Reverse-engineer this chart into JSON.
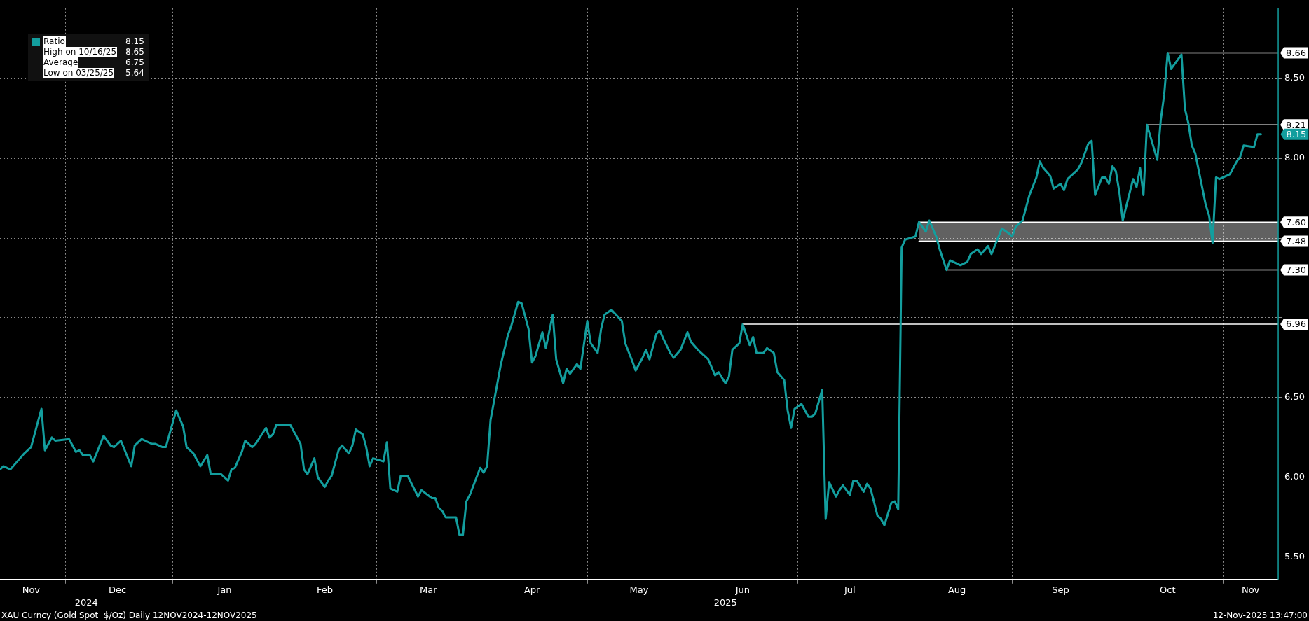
{
  "chart_data": {
    "type": "line",
    "annotations": [
      "High on 10/16/25 8.65",
      "Average 6.75",
      "Low on 03/25/25 5.64",
      "XAU Curncy (Gold Spot  $/Oz) Daily 12NOV2024-12NOV2025",
      "12-Nov-2025 13:47:00",
      {
        "text": "8.15",
        "x": "2025-11-12",
        "y": 8.15
      }
    ],
    "x2lim": [
      "2024-11-12",
      "2025-11-17"
    ],
    "x2ticks": [
      {
        "value": "2024-12-07",
        "label": "2024"
      },
      {
        "value": "2025-06-10",
        "label": "2025"
      }
    ],
    "xlim": [
      "2024-11-12",
      "2025-11-17"
    ],
    "xticks": [
      {
        "value": "2024-11-21",
        "label": "Nov"
      },
      {
        "value": "2024-12-01",
        "label": null
      },
      {
        "value": "2024-12-16",
        "label": "Dec"
      },
      {
        "value": "2025-01-01",
        "label": null
      },
      {
        "value": "2025-01-16",
        "label": "Jan"
      },
      {
        "value": "2025-02-01",
        "label": null
      },
      {
        "value": "2025-02-14",
        "label": "Feb"
      },
      {
        "value": "2025-03-01",
        "label": null
      },
      {
        "value": "2025-03-16",
        "label": "Mar"
      },
      {
        "value": "2025-04-01",
        "label": null
      },
      {
        "value": "2025-04-15",
        "label": "Apr"
      },
      {
        "value": "2025-05-01",
        "label": null
      },
      {
        "value": "2025-05-16",
        "label": "May"
      },
      {
        "value": "2025-06-01",
        "label": null
      },
      {
        "value": "2025-06-15",
        "label": "Jun"
      },
      {
        "value": "2025-07-01",
        "label": null
      },
      {
        "value": "2025-07-16",
        "label": "Jul"
      },
      {
        "value": "2025-08-01",
        "label": null
      },
      {
        "value": "2025-08-16",
        "label": "Aug"
      },
      {
        "value": "2025-09-01",
        "label": null
      },
      {
        "value": "2025-09-15",
        "label": "Sep"
      },
      {
        "value": "2025-10-01",
        "label": null
      },
      {
        "value": "2025-10-16",
        "label": "Oct"
      },
      {
        "value": "2025-11-01",
        "label": null
      },
      {
        "value": "2025-11-09",
        "label": "Nov"
      }
    ],
    "ylim": [
      5.36,
      8.94
    ],
    "yticks": [
      {
        "value": 5.5,
        "label": "5.50"
      },
      {
        "value": 6,
        "label": "6.00"
      },
      {
        "value": 6.5,
        "label": "6.50"
      },
      {
        "value": 7,
        "label": null
      },
      {
        "value": 7.5,
        "label": null
      },
      {
        "value": 8,
        "label": "8.00"
      },
      {
        "value": 8.5,
        "label": "8.50"
      }
    ],
    "grid": true,
    "legend": "top left",
    "series": [
      {
        "name": "Ratio",
        "color": "#139e9e",
        "x": [
          "2024-11-12",
          "2024-11-13",
          "2024-11-15",
          "2024-11-17",
          "2024-11-19",
          "2024-11-21",
          "2024-11-22",
          "2024-11-24",
          "2024-11-25",
          "2024-11-27",
          "2024-11-28",
          "2024-12-02",
          "2024-12-04",
          "2024-12-05",
          "2024-12-06",
          "2024-12-08",
          "2024-12-09",
          "2024-12-12",
          "2024-12-14",
          "2024-12-15",
          "2024-12-17",
          "2024-12-20",
          "2024-12-21",
          "2024-12-23",
          "2024-12-24",
          "2024-12-26",
          "2024-12-27",
          "2024-12-29",
          "2024-12-30",
          "2025-01-02",
          "2025-01-04",
          "2025-01-05",
          "2025-01-07",
          "2025-01-09",
          "2025-01-11",
          "2025-01-12",
          "2025-01-15",
          "2025-01-17",
          "2025-01-18",
          "2025-01-19",
          "2025-01-21",
          "2025-01-22",
          "2025-01-24",
          "2025-01-25",
          "2025-01-28",
          "2025-01-29",
          "2025-01-30",
          "2025-01-31",
          "2025-02-04",
          "2025-02-07",
          "2025-02-08",
          "2025-02-09",
          "2025-02-11",
          "2025-02-12",
          "2025-02-14",
          "2025-02-15",
          "2025-02-16",
          "2025-02-18",
          "2025-02-19",
          "2025-02-21",
          "2025-02-22",
          "2025-02-23",
          "2025-02-25",
          "2025-02-26",
          "2025-02-27",
          "2025-02-28",
          "2025-03-03",
          "2025-03-04",
          "2025-03-05",
          "2025-03-07",
          "2025-03-08",
          "2025-03-10",
          "2025-03-13",
          "2025-03-14",
          "2025-03-17",
          "2025-03-18",
          "2025-03-19",
          "2025-03-20",
          "2025-03-21",
          "2025-03-24",
          "2025-03-25",
          "2025-03-26",
          "2025-03-27",
          "2025-03-28",
          "2025-03-31",
          "2025-04-01",
          "2025-04-02",
          "2025-04-03",
          "2025-04-06",
          "2025-04-08",
          "2025-04-09",
          "2025-04-11",
          "2025-04-12",
          "2025-04-14",
          "2025-04-15",
          "2025-04-16",
          "2025-04-18",
          "2025-04-19",
          "2025-04-21",
          "2025-04-22",
          "2025-04-24",
          "2025-04-25",
          "2025-04-26",
          "2025-04-28",
          "2025-04-29",
          "2025-05-01",
          "2025-05-02",
          "2025-05-04",
          "2025-05-05",
          "2025-05-06",
          "2025-05-08",
          "2025-05-11",
          "2025-05-12",
          "2025-05-14",
          "2025-05-15",
          "2025-05-17",
          "2025-05-18",
          "2025-05-19",
          "2025-05-21",
          "2025-05-22",
          "2025-05-23",
          "2025-05-25",
          "2025-05-26",
          "2025-05-28",
          "2025-05-30",
          "2025-05-31",
          "2025-06-02",
          "2025-06-05",
          "2025-06-07",
          "2025-06-08",
          "2025-06-10",
          "2025-06-11",
          "2025-06-12",
          "2025-06-14",
          "2025-06-15",
          "2025-06-17",
          "2025-06-18",
          "2025-06-19",
          "2025-06-21",
          "2025-06-22",
          "2025-06-24",
          "2025-06-25",
          "2025-06-27",
          "2025-06-28",
          "2025-06-29",
          "2025-06-30",
          "2025-07-02",
          "2025-07-04",
          "2025-07-05",
          "2025-07-06",
          "2025-07-08",
          "2025-07-09",
          "2025-07-10",
          "2025-07-12",
          "2025-07-13",
          "2025-07-14",
          "2025-07-16",
          "2025-07-17",
          "2025-07-18",
          "2025-07-20",
          "2025-07-21",
          "2025-07-22",
          "2025-07-24",
          "2025-07-25",
          "2025-07-26",
          "2025-07-28",
          "2025-07-29",
          "2025-07-30",
          "2025-07-31",
          "2025-08-01",
          "2025-08-04",
          "2025-08-05",
          "2025-08-07",
          "2025-08-08",
          "2025-08-10",
          "2025-08-11",
          "2025-08-13",
          "2025-08-14",
          "2025-08-17",
          "2025-08-19",
          "2025-08-20",
          "2025-08-22",
          "2025-08-23",
          "2025-08-25",
          "2025-08-26",
          "2025-08-29",
          "2025-08-31",
          "2025-09-01",
          "2025-09-02",
          "2025-09-04",
          "2025-09-05",
          "2025-09-06",
          "2025-09-08",
          "2025-09-09",
          "2025-09-10",
          "2025-09-12",
          "2025-09-13",
          "2025-09-15",
          "2025-09-16",
          "2025-09-17",
          "2025-09-19",
          "2025-09-20",
          "2025-09-21",
          "2025-09-23",
          "2025-09-24",
          "2025-09-25",
          "2025-09-27",
          "2025-09-28",
          "2025-09-29",
          "2025-09-30",
          "2025-10-01",
          "2025-10-02",
          "2025-10-03",
          "2025-10-06",
          "2025-10-07",
          "2025-10-08",
          "2025-10-09",
          "2025-10-10",
          "2025-10-13",
          "2025-10-14",
          "2025-10-15",
          "2025-10-16",
          "2025-10-17",
          "2025-10-20",
          "2025-10-21",
          "2025-10-22",
          "2025-10-23",
          "2025-10-24",
          "2025-10-27",
          "2025-10-28",
          "2025-10-29",
          "2025-10-30",
          "2025-10-31",
          "2025-11-03",
          "2025-11-04",
          "2025-11-05",
          "2025-11-06",
          "2025-11-07",
          "2025-11-10",
          "2025-11-11",
          "2025-11-12"
        ],
        "values": [
          6.05,
          6.07,
          6.05,
          6.1,
          6.15,
          6.19,
          6.27,
          6.43,
          6.17,
          6.25,
          6.23,
          6.24,
          6.16,
          6.17,
          6.14,
          6.14,
          6.1,
          6.26,
          6.2,
          6.19,
          6.23,
          6.07,
          6.2,
          6.24,
          6.23,
          6.21,
          6.21,
          6.19,
          6.19,
          6.42,
          6.32,
          6.19,
          6.15,
          6.07,
          6.14,
          6.02,
          6.02,
          5.98,
          6.05,
          6.06,
          6.16,
          6.23,
          6.19,
          6.21,
          6.31,
          6.25,
          6.27,
          6.33,
          6.33,
          6.21,
          6.05,
          6.02,
          6.12,
          6.0,
          5.94,
          5.98,
          6.01,
          6.17,
          6.2,
          6.15,
          6.2,
          6.3,
          6.27,
          6.19,
          6.07,
          6.12,
          6.1,
          6.22,
          5.93,
          5.91,
          6.01,
          6.01,
          5.88,
          5.92,
          5.87,
          5.87,
          5.81,
          5.79,
          5.75,
          5.75,
          5.64,
          5.64,
          5.85,
          5.89,
          6.06,
          6.03,
          6.07,
          6.36,
          6.71,
          6.89,
          6.95,
          7.1,
          7.09,
          6.93,
          6.72,
          6.76,
          6.91,
          6.81,
          7.02,
          6.74,
          6.59,
          6.68,
          6.65,
          6.71,
          6.68,
          6.98,
          6.84,
          6.78,
          6.93,
          7.02,
          7.05,
          6.98,
          6.84,
          6.73,
          6.67,
          6.75,
          6.8,
          6.74,
          6.9,
          6.92,
          6.87,
          6.78,
          6.75,
          6.8,
          6.91,
          6.85,
          6.8,
          6.74,
          6.64,
          6.66,
          6.59,
          6.63,
          6.8,
          6.84,
          6.96,
          6.83,
          6.88,
          6.78,
          6.78,
          6.81,
          6.78,
          6.66,
          6.61,
          6.42,
          6.31,
          6.43,
          6.46,
          6.38,
          6.38,
          6.4,
          6.55,
          5.74,
          5.97,
          5.88,
          5.92,
          5.95,
          5.89,
          5.98,
          5.98,
          5.91,
          5.96,
          5.93,
          5.76,
          5.74,
          5.7,
          5.84,
          5.85,
          5.8,
          7.44,
          7.49,
          7.51,
          7.6,
          7.54,
          7.61,
          7.51,
          7.43,
          7.3,
          7.36,
          7.33,
          7.35,
          7.4,
          7.43,
          7.4,
          7.45,
          7.4,
          7.56,
          7.53,
          7.51,
          7.57,
          7.61,
          7.69,
          7.77,
          7.88,
          7.98,
          7.94,
          7.89,
          7.81,
          7.84,
          7.8,
          7.87,
          7.91,
          7.93,
          7.97,
          8.09,
          8.11,
          7.77,
          7.88,
          7.88,
          7.84,
          7.95,
          7.92,
          7.79,
          7.61,
          7.87,
          7.82,
          7.94,
          7.77,
          8.21,
          7.99,
          8.24,
          8.4,
          8.66,
          8.56,
          8.65,
          8.31,
          8.22,
          8.08,
          8.03,
          7.71,
          7.64,
          7.47,
          7.88,
          7.87,
          7.9,
          7.94,
          7.98,
          8.01,
          8.08,
          8.07,
          8.15,
          8.15
        ]
      },
      {
        "type": "line",
        "color": "#ffffff",
        "x": [
          "2025-10-16",
          "2025-11-17"
        ],
        "values": [
          8.66,
          8.66
        ],
        "value_labels": [
          null,
          "8.66"
        ]
      },
      {
        "type": "line",
        "color": "#ffffff",
        "x": [
          "2025-10-10",
          "2025-11-17"
        ],
        "values": [
          8.21,
          8.21
        ],
        "value_labels": [
          null,
          "8.21"
        ]
      },
      {
        "type": "line",
        "color": "#ffffff",
        "x": [
          "2025-08-05",
          "2025-11-17"
        ],
        "values": [
          7.6,
          7.6
        ],
        "value_labels": [
          null,
          "7.60"
        ]
      },
      {
        "type": "line",
        "color": "#ffffff",
        "x": [
          "2025-08-05",
          "2025-11-17"
        ],
        "values": [
          7.48,
          7.48
        ],
        "lower": [
          7.48,
          7.48
        ],
        "upper": [
          7.6,
          7.6
        ],
        "value_labels": [
          null,
          "7.48"
        ]
      },
      {
        "type": "line",
        "color": "#ffffff",
        "x": [
          "2025-08-13",
          "2025-11-17"
        ],
        "values": [
          7.3,
          7.3
        ],
        "value_labels": [
          null,
          "7.30"
        ]
      },
      {
        "type": "line",
        "color": "#ffffff",
        "x": [
          "2025-06-15",
          "2025-11-17"
        ],
        "values": [
          6.96,
          6.96
        ],
        "value_labels": [
          null,
          "6.96"
        ]
      }
    ]
  }
}
